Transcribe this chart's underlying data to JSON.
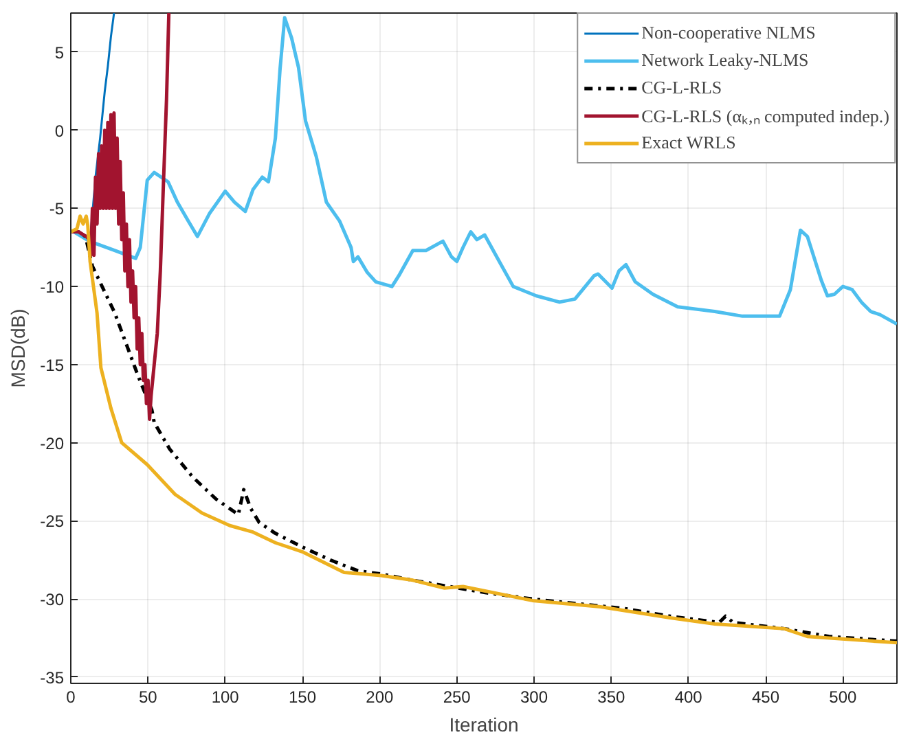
{
  "chart_data": {
    "type": "line",
    "xlabel": "Iteration",
    "ylabel": "MSD(dB)",
    "xlim": [
      0,
      535
    ],
    "ylim": [
      -35.4,
      7.5
    ],
    "xticks": [
      0,
      50,
      100,
      150,
      200,
      250,
      300,
      350,
      400,
      450,
      500
    ],
    "yticks": [
      -35,
      -30,
      -25,
      -20,
      -15,
      -10,
      -5,
      0,
      5
    ],
    "grid": true,
    "legend": "top right",
    "series": [
      {
        "name": "Non-cooperative NLMS",
        "color": "#0072bd",
        "line_style": "solid",
        "x": [
          0,
          5,
          10,
          13,
          16,
          19,
          22,
          24,
          26,
          28
        ],
        "values": [
          -6.5,
          -6.5,
          -6.8,
          -6.5,
          -3,
          -0.5,
          2.5,
          4.1,
          6,
          7.5
        ]
      },
      {
        "name": "Network Leaky-NLMS",
        "color": "#4dbeee",
        "line_style": "solid",
        "x": [
          0,
          2,
          12,
          28.7,
          42,
          45,
          49.5,
          54,
          63,
          69,
          76,
          82,
          90,
          100,
          106,
          113,
          118,
          124,
          128,
          132.5,
          135.5,
          138.5,
          143,
          147.5,
          152,
          159,
          165.5,
          174,
          181.5,
          183,
          186,
          192,
          197.5,
          208,
          212.5,
          221.5,
          230,
          241,
          246.5,
          250,
          254,
          259,
          263,
          268,
          277.5,
          286.5,
          301.5,
          316.5,
          326.5,
          339,
          341.5,
          350.5,
          355,
          359.5,
          365.5,
          377,
          393,
          417,
          435,
          459,
          466,
          472.5,
          477,
          486,
          490,
          494.5,
          500,
          506,
          512,
          518,
          524,
          535
        ],
        "values": [
          -6.5,
          -6.5,
          -7.1,
          -7.7,
          -8.2,
          -7.5,
          -3.2,
          -2.7,
          -3.3,
          -4.6,
          -5.8,
          -6.8,
          -5.3,
          -3.9,
          -4.6,
          -5.2,
          -3.8,
          -3,
          -3.3,
          -0.5,
          3.9,
          7.2,
          5.9,
          4,
          0.6,
          -1.7,
          -4.6,
          -5.8,
          -7.5,
          -8.4,
          -8.1,
          -9.1,
          -9.7,
          -10,
          -9.3,
          -7.7,
          -7.7,
          -7.1,
          -8.1,
          -8.4,
          -7.5,
          -6.5,
          -7,
          -6.7,
          -8.4,
          -10,
          -10.6,
          -11,
          -10.8,
          -9.3,
          -9.2,
          -10.1,
          -9,
          -8.6,
          -9.7,
          -10.5,
          -11.3,
          -11.6,
          -11.9,
          -11.9,
          -10.2,
          -6.4,
          -6.8,
          -9.6,
          -10.6,
          -10.5,
          -10,
          -10.2,
          -11,
          -11.6,
          -11.8,
          -12.4
        ]
      },
      {
        "name": "CG-L-RLS",
        "color": "#000000",
        "line_style": "dashdot",
        "x": [
          0,
          5,
          9.5,
          14,
          28.5,
          43.5,
          52.5,
          54,
          64,
          79,
          94,
          108.5,
          112,
          116.5,
          122,
          132.5,
          150.5,
          168,
          186,
          201,
          221.5,
          245,
          269,
          299,
          328,
          358,
          388,
          420,
          424,
          429,
          462,
          491,
          535
        ],
        "values": [
          -6.5,
          -6.5,
          -6.8,
          -8.7,
          -11.7,
          -15.7,
          -17.9,
          -18.7,
          -20.4,
          -22.2,
          -23.6,
          -24.6,
          -23,
          -24.2,
          -25.1,
          -25.8,
          -26.7,
          -27.5,
          -28.2,
          -28.4,
          -28.8,
          -29.2,
          -29.6,
          -30,
          -30.3,
          -30.6,
          -31.1,
          -31.5,
          -31.1,
          -31.5,
          -31.9,
          -32.4,
          -32.7
        ]
      },
      {
        "name": "CG-L-RLS (αₖ,ₙ computed indep.)",
        "color": "#a2142f",
        "line_style": "solid",
        "x": [
          0,
          5,
          10,
          12,
          13,
          14,
          15,
          16,
          17,
          18,
          19,
          20,
          21,
          22,
          23,
          24,
          25,
          26,
          27,
          28,
          29,
          30,
          31,
          32,
          33,
          34,
          35,
          36,
          37,
          38,
          39,
          40,
          41,
          42,
          43,
          44,
          45,
          46,
          47,
          48,
          49,
          50,
          51,
          52,
          54,
          56,
          58,
          60,
          62,
          63.5
        ],
        "values": [
          -6.5,
          -6.5,
          -6.8,
          -7,
          -8,
          -5,
          -8,
          -3,
          -6,
          -1.5,
          -5,
          -1,
          -5,
          0,
          -5,
          0.5,
          -5,
          1,
          -5,
          1.1,
          -5,
          -0.5,
          -6,
          -2,
          -7,
          -4,
          -9,
          -6,
          -10,
          -7,
          -11,
          -9,
          -12,
          -10,
          -14,
          -12,
          -15,
          -13,
          -16,
          -15,
          -17.5,
          -16,
          -18.5,
          -17,
          -15,
          -13,
          -9,
          -3.4,
          2,
          7.5
        ]
      },
      {
        "name": "Exact WRLS",
        "color": "#edb120",
        "line_style": "solid",
        "x": [
          0,
          4,
          6,
          8,
          10,
          11,
          12.5,
          17,
          19.5,
          26,
          33,
          49.5,
          67.5,
          85,
          103,
          117.5,
          132.5,
          150.5,
          177,
          201,
          221.5,
          242,
          254,
          299,
          343,
          388,
          417,
          432,
          462,
          477,
          535
        ],
        "values": [
          -6.5,
          -6.3,
          -5.5,
          -6,
          -5.5,
          -6.1,
          -8.4,
          -11.7,
          -15.2,
          -17.8,
          -20,
          -21.4,
          -23.3,
          -24.5,
          -25.3,
          -25.7,
          -26.4,
          -27,
          -28.3,
          -28.5,
          -28.8,
          -29.3,
          -29.2,
          -30.1,
          -30.5,
          -31.2,
          -31.6,
          -31.7,
          -31.9,
          -32.4,
          -32.8
        ]
      }
    ]
  }
}
